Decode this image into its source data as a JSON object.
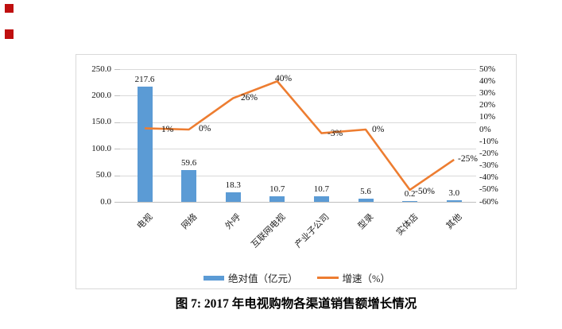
{
  "page": {
    "caption": "图 7: 2017 年电视购物各渠道销售额增长情况"
  },
  "chart_data": {
    "type": "bar",
    "subtype": "combo-bar-line-dual-axis",
    "title": "",
    "categories": [
      "电视",
      "网络",
      "外呼",
      "互联网电视",
      "产业子公司",
      "型录",
      "实体店",
      "其他"
    ],
    "series": [
      {
        "name": "绝对值（亿元）",
        "chart": "bar",
        "axis": "left",
        "color": "#5B9BD5",
        "values": [
          217.6,
          59.6,
          18.3,
          10.7,
          10.7,
          5.6,
          0.2,
          3.0
        ],
        "data_labels": [
          "217.6",
          "59.6",
          "18.3",
          "10.7",
          "10.7",
          "5.6",
          "0.2",
          "3.0"
        ]
      },
      {
        "name": "增速（%）",
        "chart": "line",
        "axis": "right",
        "color": "#ED7D31",
        "values": [
          1,
          0,
          26,
          40,
          -3,
          0,
          -50,
          -25
        ],
        "data_labels": [
          "1%",
          "0%",
          "26%",
          "40%",
          "-3%",
          "0%",
          "-50%",
          "-25%"
        ]
      }
    ],
    "left_axis": {
      "min": 0,
      "max": 250,
      "ticks": [
        "250.0",
        "200.0",
        "150.0",
        "100.0",
        "50.0",
        "0.0"
      ]
    },
    "right_axis": {
      "min": -60,
      "max": 50,
      "ticks": [
        "50%",
        "40%",
        "30%",
        "20%",
        "10%",
        "0%",
        "-10%",
        "-20%",
        "-30%",
        "-40%",
        "-50%",
        "-60%"
      ]
    },
    "legend": [
      "绝对值（亿元）",
      "增速（%）"
    ],
    "legend_position": "bottom",
    "grid": true,
    "grid_color": "#d9d9d9",
    "border_color": "#d9d9d9"
  }
}
